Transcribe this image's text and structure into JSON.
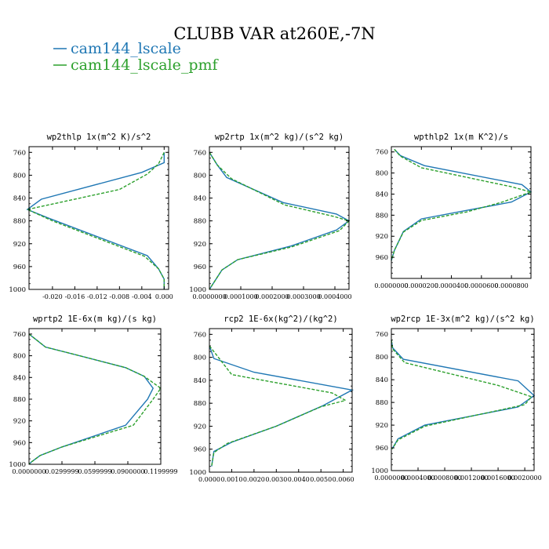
{
  "figure": {
    "title": "CLUBB VAR at260E,-7N",
    "legend": [
      {
        "label": "cam144_lscale",
        "color": "#1f77b4",
        "dash": "solid"
      },
      {
        "label": "cam144_lscale_pmf",
        "color": "#2ca02c",
        "dash": "dashed"
      }
    ]
  },
  "chart_data": [
    {
      "type": "line",
      "title": "wp2thlp  1x(m^2 K)/s^2",
      "xlim": [
        -0.0242,
        0.0008
      ],
      "ylim": [
        1000,
        750
      ],
      "xticks": [
        -0.02,
        -0.016,
        -0.012,
        -0.008,
        -0.004,
        0.0
      ],
      "xtick_labels": [
        "-0.020",
        "-0.016",
        "-0.012",
        "-0.008",
        "-0.004",
        "0.000"
      ],
      "yticks": [
        760,
        800,
        840,
        880,
        920,
        960,
        1000
      ],
      "ytick_labels": [
        "760",
        "800",
        "840",
        "880",
        "920",
        "960",
        "1000"
      ],
      "series": [
        {
          "name": "cam144_lscale",
          "color": "#1f77b4",
          "dash": "solid",
          "x": [
            0.0,
            0.0,
            -0.004,
            -0.022,
            -0.0245,
            -0.021,
            -0.003,
            -0.001,
            0.0,
            0.0
          ],
          "y": [
            760,
            778,
            795,
            842,
            860,
            874,
            941,
            964,
            982,
            1000
          ]
        },
        {
          "name": "cam144_lscale_pmf",
          "color": "#2ca02c",
          "dash": "dashed",
          "x": [
            0.0,
            -0.001,
            -0.003,
            -0.008,
            -0.0245,
            -0.02,
            -0.0035,
            -0.001,
            0.0,
            0.0
          ],
          "y": [
            760,
            780,
            798,
            825,
            860,
            880,
            942,
            964,
            982,
            1000
          ]
        }
      ]
    },
    {
      "type": "line",
      "title": "wp2rtp  1x(m^2 kg)/(s^2 kg)",
      "xlim": [
        0,
        0.000445
      ],
      "ylim": [
        1000,
        750
      ],
      "xticks": [
        0.0,
        0.0001,
        0.0002,
        0.0003,
        0.0004
      ],
      "xtick_labels": [
        "0.0000000",
        "0.0001000",
        "0.0002000",
        "0.0003000",
        "0.0004000"
      ],
      "yticks": [
        760,
        800,
        840,
        880,
        920,
        960,
        1000
      ],
      "ytick_labels": [
        "760",
        "800",
        "840",
        "880",
        "920",
        "960",
        "1000"
      ],
      "series": [
        {
          "name": "cam144_lscale",
          "color": "#1f77b4",
          "dash": "solid",
          "x": [
            0.0,
            2.5e-05,
            5.5e-05,
            0.000235,
            0.000405,
            0.000445,
            0.000405,
            0.00026,
            9e-05,
            4e-05,
            0.0
          ],
          "y": [
            760,
            782,
            804,
            848,
            868,
            880,
            896,
            924,
            948,
            966,
            1000
          ]
        },
        {
          "name": "cam144_lscale_pmf",
          "color": "#2ca02c",
          "dash": "dashed",
          "x": [
            0.0,
            2.5e-05,
            7e-05,
            0.00024,
            0.000395,
            0.000445,
            0.000415,
            0.00026,
            9e-05,
            4e-05,
            0.0
          ],
          "y": [
            760,
            782,
            806,
            852,
            872,
            880,
            897,
            926,
            948,
            966,
            1000
          ]
        }
      ]
    },
    {
      "type": "line",
      "title": "wpthlp2  1x(m K^2)/s",
      "xlim": [
        0,
        9.3e-05
      ],
      "ylim": [
        1000,
        750
      ],
      "xticks": [
        0.0,
        2e-05,
        4e-05,
        6e-05,
        8e-05
      ],
      "xtick_labels": [
        "0.0000000",
        "0.0000200",
        "0.0000400",
        "0.0000600",
        "0.0000800"
      ],
      "yticks": [
        760,
        800,
        840,
        880,
        920,
        960
      ],
      "ytick_labels": [
        "760",
        "800",
        "840",
        "880",
        "920",
        "960"
      ],
      "series": [
        {
          "name": "cam144_lscale",
          "color": "#1f77b4",
          "dash": "solid",
          "x": [
            2e-06,
            6e-06,
            2.2e-05,
            8.7e-05,
            9.3e-05,
            8e-05,
            5e-05,
            2e-05,
            8e-06,
            2e-06,
            0.0
          ],
          "y": [
            755,
            767,
            786,
            822,
            836,
            855,
            871,
            887,
            911,
            947,
            966
          ]
        },
        {
          "name": "cam144_lscale_pmf",
          "color": "#2ca02c",
          "dash": "dashed",
          "x": [
            2e-06,
            6e-06,
            2e-05,
            8e-05,
            9.3e-05,
            7.4e-05,
            5e-05,
            2e-05,
            8e-06,
            2e-06,
            0.0
          ],
          "y": [
            755,
            768,
            790,
            826,
            836,
            855,
            874,
            890,
            912,
            947,
            966
          ]
        }
      ]
    },
    {
      "type": "line",
      "title": "wprtp2  1E-6x(m kg)/(s kg)",
      "xlim": [
        0,
        0.12
      ],
      "ylim": [
        1000,
        750
      ],
      "xticks": [
        0.0,
        0.0299999,
        0.0599999,
        0.09,
        0.1199999
      ],
      "xtick_labels": [
        "0.0000000",
        "0.0299999",
        "0.0599999",
        "0.0900000",
        "0.1199999"
      ],
      "yticks": [
        760,
        800,
        840,
        880,
        920,
        960,
        1000
      ],
      "ytick_labels": [
        "760",
        "800",
        "840",
        "880",
        "920",
        "960",
        "1000"
      ],
      "series": [
        {
          "name": "cam144_lscale",
          "color": "#1f77b4",
          "dash": "solid",
          "x": [
            0.0,
            0.015,
            0.05,
            0.088,
            0.105,
            0.113,
            0.108,
            0.088,
            0.03,
            0.01,
            0.002,
            0.0
          ],
          "y": [
            760,
            784,
            802,
            822,
            838,
            860,
            880,
            928,
            968,
            984,
            996,
            1000
          ]
        },
        {
          "name": "cam144_lscale_pmf",
          "color": "#2ca02c",
          "dash": "dashed",
          "x": [
            0.0,
            0.015,
            0.05,
            0.088,
            0.105,
            0.12,
            0.113,
            0.095,
            0.03,
            0.01,
            0.002,
            0.0
          ],
          "y": [
            760,
            784,
            802,
            822,
            838,
            860,
            880,
            928,
            968,
            984,
            996,
            1000
          ]
        }
      ]
    },
    {
      "type": "line",
      "title": "rcp2  1E-6x(kg^2)/(kg^2)",
      "xlim": [
        0,
        0.0064
      ],
      "ylim": [
        1000,
        750
      ],
      "xticks": [
        0.0,
        0.001,
        0.002,
        0.003,
        0.004,
        0.005,
        0.006
      ],
      "xtick_labels": [
        "0.0000",
        "0.0010",
        "0.0020",
        "0.0030",
        "0.0040",
        "0.0050",
        "0.0060"
      ],
      "yticks": [
        760,
        800,
        840,
        880,
        920,
        960,
        1000
      ],
      "ytick_labels": [
        "760",
        "800",
        "840",
        "880",
        "920",
        "960",
        "1000"
      ],
      "series": [
        {
          "name": "cam144_lscale",
          "color": "#1f77b4",
          "dash": "solid",
          "x": [
            0.0,
            0.0002,
            0.002,
            0.0064,
            0.0051,
            0.003,
            0.001,
            0.0002,
            0.0001
          ],
          "y": [
            780,
            802,
            826,
            857,
            884,
            920,
            948,
            964,
            990
          ]
        },
        {
          "name": "cam144_lscale_pmf",
          "color": "#2ca02c",
          "dash": "dashed",
          "x": [
            0.0,
            0.0004,
            0.001,
            0.0055,
            0.0061,
            0.005,
            0.003,
            0.0008,
            0.0002,
            0.0001
          ],
          "y": [
            780,
            800,
            830,
            862,
            875,
            886,
            920,
            950,
            966,
            990
          ]
        }
      ]
    },
    {
      "type": "line",
      "title": "wp2rcp  1E-3x(m^2 kg)/(s^2 kg)",
      "xlim": [
        0,
        0.00214
      ],
      "ylim": [
        1000,
        750
      ],
      "xticks": [
        0.0,
        0.0004,
        0.0008,
        0.0012,
        0.0016,
        0.002
      ],
      "xtick_labels": [
        "0.0000000",
        "0.0004000",
        "0.0008000",
        "0.0012000",
        "0.0016000",
        "0.0020000"
      ],
      "yticks": [
        760,
        800,
        840,
        880,
        920,
        960,
        1000
      ],
      "ytick_labels": [
        "760",
        "800",
        "840",
        "880",
        "920",
        "960",
        "1000"
      ],
      "series": [
        {
          "name": "cam144_lscale",
          "color": "#1f77b4",
          "dash": "solid",
          "x": [
            0.0,
            2e-05,
            0.00018,
            0.0019,
            0.00214,
            0.0019,
            0.0005,
            0.0001,
            1e-05
          ],
          "y": [
            770,
            784,
            804,
            842,
            868,
            888,
            920,
            944,
            962
          ]
        },
        {
          "name": "cam144_lscale_pmf",
          "color": "#2ca02c",
          "dash": "dashed",
          "x": [
            0.0,
            2e-05,
            0.0002,
            0.0016,
            0.0021,
            0.002,
            0.0005,
            0.0001,
            1e-05
          ],
          "y": [
            770,
            786,
            810,
            850,
            870,
            884,
            922,
            946,
            962
          ]
        }
      ]
    }
  ]
}
